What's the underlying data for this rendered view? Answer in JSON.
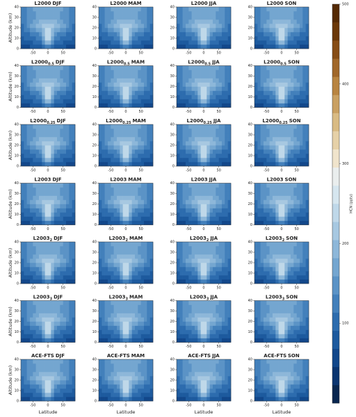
{
  "chart_data": {
    "type": "contour",
    "rows": [
      {
        "model": "L2000"
      },
      {
        "model": "L2000",
        "subscript": "0.5"
      },
      {
        "model": "L2000",
        "subscript": "0.25"
      },
      {
        "model": "L2003"
      },
      {
        "model": "L2003",
        "subscript": "2"
      },
      {
        "model": "L2003",
        "subscript": "3"
      },
      {
        "model": "ACE-FTS"
      }
    ],
    "seasons": [
      "DJF",
      "MAM",
      "JJA",
      "SON"
    ],
    "ylabel": "Altitude (km)",
    "xlabel": "Latitude",
    "xlim": [
      -90,
      90
    ],
    "xticks": [
      -50,
      0,
      50
    ],
    "ylim": [
      0,
      40
    ],
    "yticks": [
      0,
      10,
      20,
      30,
      40
    ],
    "colorbar": {
      "label": "HCN (pptv)",
      "lim": [
        0,
        500
      ],
      "ticks": [
        100,
        200,
        300,
        400,
        500
      ],
      "colors": [
        "#08264f",
        "#0b3570",
        "#12478a",
        "#1d5a9e",
        "#2d6cae",
        "#4380bb",
        "#5b93c6",
        "#74a6d0",
        "#8db7d9",
        "#a7c8e1",
        "#bfd8e9",
        "#d6e6ef",
        "#eaeeee",
        "#f0e4cc",
        "#e6d1a8",
        "#d9bb84",
        "#c9a062",
        "#b88441",
        "#a0672a",
        "#864d16",
        "#6b3808",
        "#552a04"
      ]
    }
  }
}
